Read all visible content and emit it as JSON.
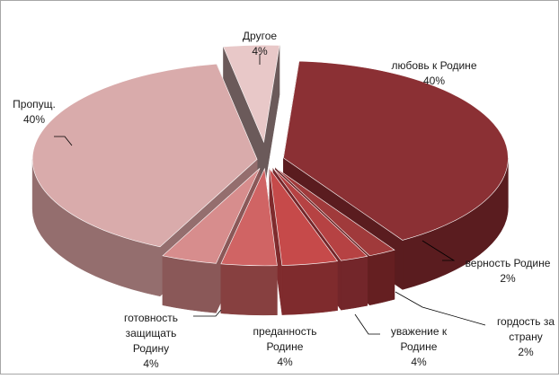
{
  "chart_data": {
    "type": "pie",
    "title": "",
    "style": "exploded 3d pie",
    "border_color": "#a6a6a6",
    "slices": [
      {
        "label": "любовь к Родине",
        "value": 40,
        "value_label": "40%",
        "color": "#8b3034",
        "side": "#5a1c1f"
      },
      {
        "label": "верность Родине",
        "value": 2,
        "value_label": "2%",
        "color": "#a03a3b",
        "side": "#651f21"
      },
      {
        "label": "гордость за страну",
        "value": 2,
        "value_label": "2%",
        "color": "#b64243",
        "side": "#73262a"
      },
      {
        "label": "уважение к Родине",
        "value": 4,
        "value_label": "4%",
        "color": "#c64a4a",
        "side": "#7f2b2d"
      },
      {
        "label": "преданность Родине",
        "value": 4,
        "value_label": "4%",
        "color": "#d06464",
        "side": "#874040"
      },
      {
        "label": "готовность защищать Родину",
        "value": 4,
        "value_label": "4%",
        "color": "#d78d8d",
        "side": "#8a5858"
      },
      {
        "label": "Пропущ.",
        "value": 40,
        "value_label": "40%",
        "color": "#d9abab",
        "side": "#946e6e"
      },
      {
        "label": "Другое",
        "value": 4,
        "value_label": "4%",
        "color": "#e8c8c8",
        "side": "#6b5a5a"
      }
    ]
  },
  "labels": [
    {
      "lines": [
        "любовь к Родине",
        "40%"
      ]
    },
    {
      "lines": [
        "верность Родине",
        "2%"
      ]
    },
    {
      "lines": [
        "гордость за",
        "страну",
        "2%"
      ]
    },
    {
      "lines": [
        "уважение к",
        "Родине",
        "4%"
      ]
    },
    {
      "lines": [
        "преданность",
        "Родине",
        "4%"
      ]
    },
    {
      "lines": [
        "готовность",
        "защищать",
        "Родину",
        "4%"
      ]
    },
    {
      "lines": [
        "Пропущ.",
        "40%"
      ]
    },
    {
      "lines": [
        "Другое",
        "4%"
      ]
    }
  ]
}
